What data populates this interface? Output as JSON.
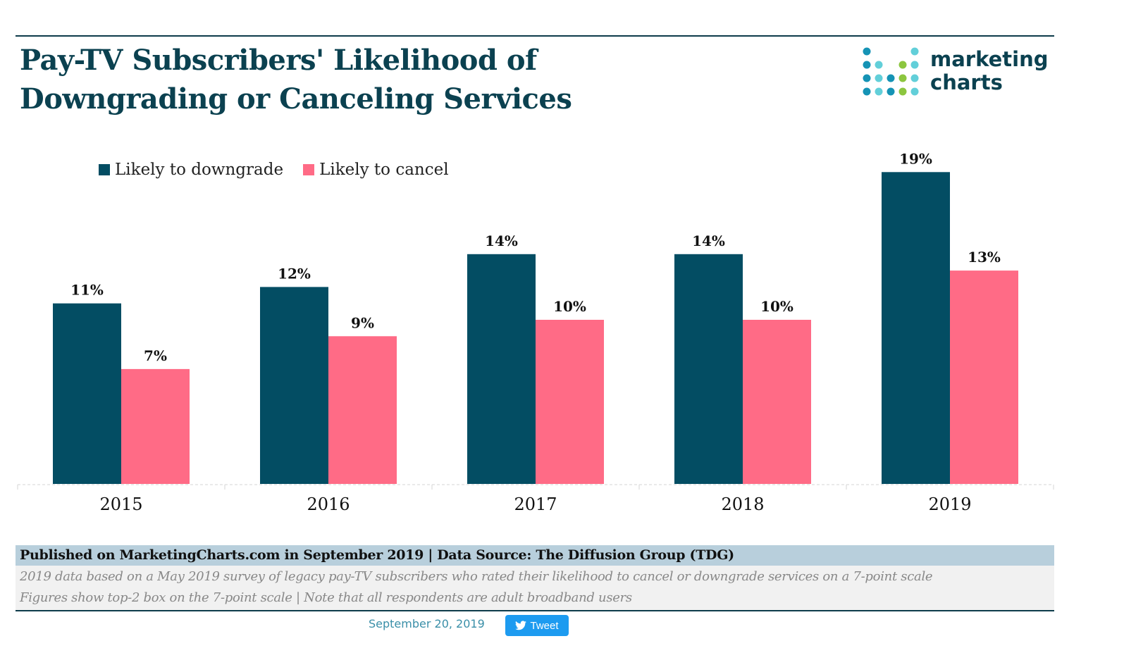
{
  "header": {
    "title_line1": "Pay-TV Subscribers' Likelihood of",
    "title_line2": "Downgrading or Canceling Services",
    "logo_line1": "marketing",
    "logo_line2": "charts"
  },
  "colors": {
    "downgrade": "#034d63",
    "cancel": "#ff6b86",
    "title": "#0b4150",
    "source_bar": "#b8cfdc",
    "notes_bar": "#f1f1f1",
    "tweet": "#1d9bf0"
  },
  "chart_data": {
    "type": "bar",
    "title": "Pay-TV Subscribers' Likelihood of Downgrading or Canceling Services",
    "xlabel": "",
    "ylabel": "",
    "categories": [
      "2015",
      "2016",
      "2017",
      "2018",
      "2019"
    ],
    "series": [
      {
        "name": "Likely to downgrade",
        "values": [
          11,
          12,
          14,
          14,
          19
        ],
        "labels": [
          "11%",
          "12%",
          "14%",
          "14%",
          "19%"
        ]
      },
      {
        "name": "Likely to cancel",
        "values": [
          7,
          9,
          10,
          10,
          13
        ],
        "labels": [
          "7%",
          "9%",
          "10%",
          "10%",
          "13%"
        ]
      }
    ],
    "unit": "%",
    "ylim": [
      0,
      20
    ],
    "grid": false,
    "legend": "top-left"
  },
  "footer": {
    "source": "Published on MarketingCharts.com in September 2019 | Data Source: The Diffusion Group (TDG)",
    "note1": "2019 data based on a May 2019 survey of legacy pay-TV subscribers who rated their likelihood to cancel or downgrade services on a 7-point scale",
    "note2": "Figures show top-2 box on the 7-point scale | Note that all respondents are adult broadband users",
    "date": "September 20, 2019",
    "tweet_label": "Tweet"
  }
}
